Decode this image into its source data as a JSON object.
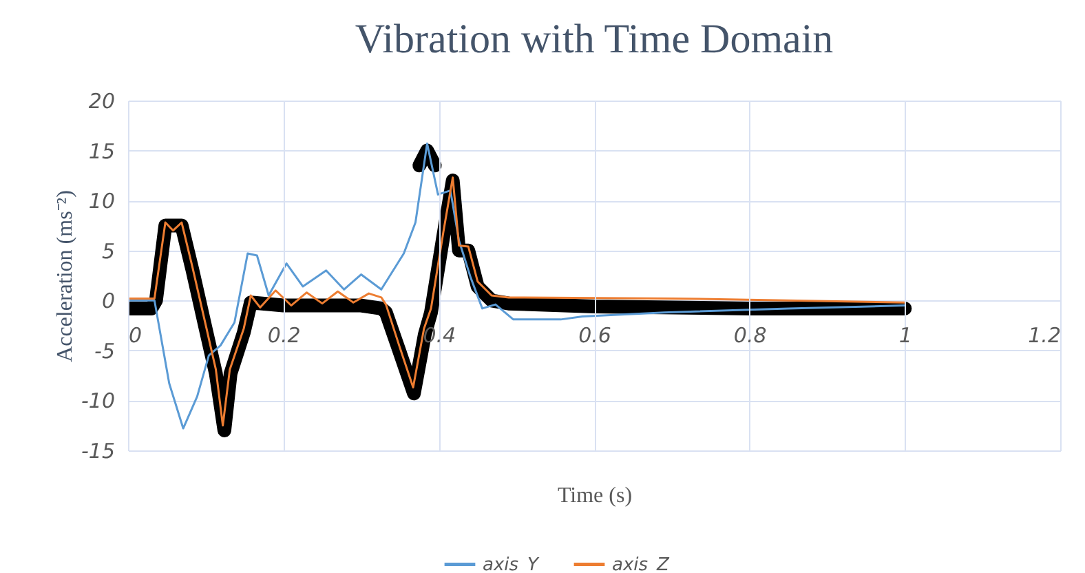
{
  "chart_data": {
    "type": "line",
    "title": "Vibration with Time Domain",
    "xlabel": "Time (s)",
    "ylabel": "Acceleration (ms⁻²)",
    "xlim": [
      0,
      1.2
    ],
    "xticks": [
      0,
      0.2,
      0.4,
      0.6,
      0.8,
      1,
      1.2
    ],
    "ylim": [
      -15,
      20
    ],
    "yticks": [
      -15,
      -10,
      -5,
      0,
      5,
      10,
      15,
      20
    ],
    "grid": true,
    "legend": "bottom",
    "series": [
      {
        "color": "#000000",
        "x": [
          0,
          0.03,
          0.036,
          0.048,
          0.069,
          0.083,
          0.101,
          0.113,
          0.124,
          0.132,
          0.149,
          0.158,
          0.2,
          0.25,
          0.3,
          0.326,
          0.332,
          0.349,
          0.368,
          0.382,
          0.39,
          0.406,
          0.418,
          0.426,
          0.438,
          0.45,
          0.468,
          0.49,
          0.6,
          0.8,
          1
        ],
        "values": [
          -0.8,
          -0.8,
          0,
          7.5,
          7.5,
          3,
          -3.2,
          -7.3,
          -13,
          -7.3,
          -3.2,
          -0.2,
          -0.5,
          -0.5,
          -0.5,
          -0.8,
          -1.2,
          -5,
          -9.3,
          -3.4,
          -1.2,
          6.5,
          12,
          5,
          5,
          1.4,
          0,
          -0.3,
          -0.6,
          -0.8,
          -0.8
        ]
      },
      {
        "color": "#000000",
        "x": [
          0.375,
          0.385,
          0.395
        ],
        "values": [
          13.5,
          15,
          13.5
        ]
      },
      {
        "name": "axis_Y",
        "color": "#5b9bd5",
        "x": [
          0,
          0.034,
          0.053,
          0.071,
          0.089,
          0.104,
          0.119,
          0.137,
          0.154,
          0.166,
          0.181,
          0.204,
          0.225,
          0.255,
          0.278,
          0.3,
          0.326,
          0.355,
          0.37,
          0.385,
          0.399,
          0.415,
          0.426,
          0.441,
          0.456,
          0.473,
          0.496,
          0.557,
          0.585,
          0.69,
          0.85,
          1
        ],
        "values": [
          0,
          0,
          -8.3,
          -12.8,
          -9.6,
          -5.5,
          -4.5,
          -2.2,
          4.7,
          4.5,
          0.5,
          3.7,
          1.4,
          3,
          1.1,
          2.6,
          1.1,
          4.7,
          7.8,
          15.7,
          10.6,
          11,
          6,
          2.3,
          -0.8,
          -0.4,
          -1.9,
          -1.9,
          -1.6,
          -1.2,
          -0.8,
          -0.5
        ]
      },
      {
        "name": "axis_Z",
        "color": "#ed7d31",
        "x": [
          0,
          0.034,
          0.048,
          0.058,
          0.069,
          0.083,
          0.101,
          0.113,
          0.122,
          0.131,
          0.149,
          0.158,
          0.17,
          0.19,
          0.21,
          0.23,
          0.25,
          0.27,
          0.29,
          0.31,
          0.326,
          0.332,
          0.349,
          0.367,
          0.381,
          0.39,
          0.406,
          0.418,
          0.426,
          0.438,
          0.45,
          0.468,
          0.49,
          0.7,
          1
        ],
        "values": [
          0.2,
          0.2,
          7.8,
          7,
          7.8,
          3.3,
          -2.8,
          -6.9,
          -12.5,
          -6.9,
          -2.8,
          0.5,
          -0.7,
          1,
          -0.5,
          0.8,
          -0.3,
          0.9,
          -0.2,
          0.7,
          0.3,
          -0.4,
          -4.5,
          -8.7,
          -2.8,
          -0.8,
          6.9,
          12.3,
          5.5,
          5.4,
          1.9,
          0.5,
          0.3,
          0.2,
          -0.2
        ]
      }
    ]
  }
}
